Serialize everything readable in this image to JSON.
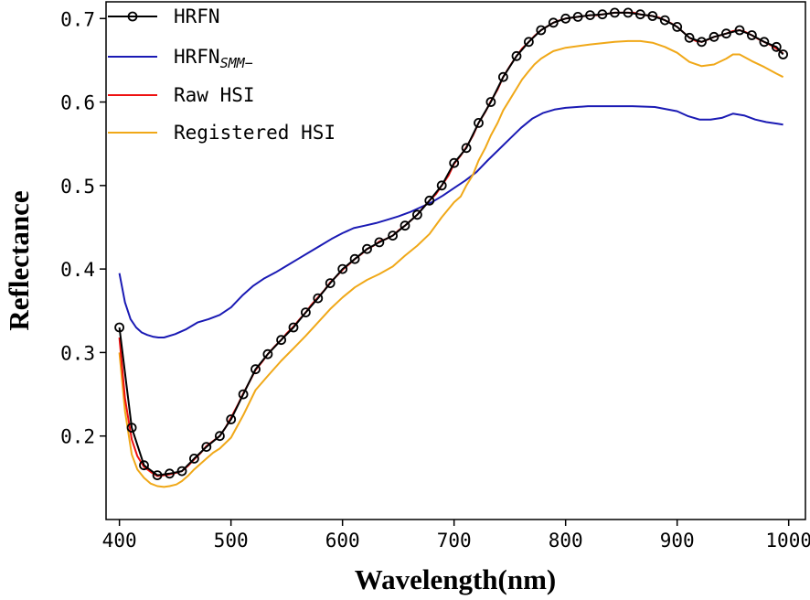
{
  "chart_data": {
    "type": "line",
    "title": "",
    "xlabel": "Wavelength(nm)",
    "ylabel": "Reflectance",
    "xlim": [
      388,
      1015
    ],
    "ylim": [
      0.1,
      0.72
    ],
    "xticks": [
      400,
      500,
      600,
      700,
      800,
      900,
      1000
    ],
    "xtick_labels": [
      "400",
      "500",
      "600",
      "700",
      "800",
      "900",
      "1000"
    ],
    "yticks": [
      0.2,
      0.3,
      0.4,
      0.5,
      0.6,
      0.7
    ],
    "ytick_labels": [
      "0.2",
      "0.3",
      "0.4",
      "0.5",
      "0.6",
      "0.7"
    ],
    "grid": false,
    "legend_position": "top-left",
    "series": [
      {
        "name": "HRFN",
        "legend_label": "HRFN",
        "color": "#000000",
        "marker": "circle-open",
        "x": [
          400,
          411,
          422,
          434,
          445,
          456,
          467,
          478,
          490,
          500,
          511,
          522,
          533,
          545,
          556,
          567,
          578,
          589,
          600,
          611,
          622,
          633,
          645,
          656,
          667,
          678,
          689,
          700,
          711,
          722,
          733,
          744,
          756,
          767,
          778,
          789,
          800,
          811,
          822,
          833,
          844,
          856,
          867,
          878,
          889,
          900,
          911,
          922,
          933,
          944,
          956,
          967,
          978,
          989,
          995
        ],
        "values": [
          0.33,
          0.21,
          0.165,
          0.153,
          0.155,
          0.158,
          0.173,
          0.187,
          0.2,
          0.22,
          0.25,
          0.28,
          0.298,
          0.315,
          0.33,
          0.348,
          0.365,
          0.383,
          0.4,
          0.412,
          0.424,
          0.432,
          0.44,
          0.452,
          0.465,
          0.482,
          0.5,
          0.527,
          0.545,
          0.575,
          0.6,
          0.63,
          0.655,
          0.672,
          0.686,
          0.695,
          0.7,
          0.702,
          0.704,
          0.705,
          0.707,
          0.707,
          0.705,
          0.703,
          0.698,
          0.69,
          0.677,
          0.672,
          0.678,
          0.682,
          0.686,
          0.68,
          0.672,
          0.666,
          0.657
        ]
      },
      {
        "name": "HRFN_SMM-",
        "legend_label": "HRFN",
        "legend_sub": "SMM−",
        "color": "#1a1ab4",
        "marker": "none",
        "x": [
          400,
          405,
          410,
          415,
          420,
          425,
          430,
          435,
          440,
          450,
          460,
          470,
          480,
          490,
          500,
          510,
          520,
          530,
          540,
          550,
          560,
          570,
          580,
          590,
          600,
          610,
          620,
          630,
          640,
          650,
          660,
          670,
          680,
          690,
          700,
          710,
          720,
          730,
          740,
          750,
          760,
          770,
          780,
          790,
          800,
          820,
          840,
          860,
          880,
          900,
          910,
          920,
          930,
          940,
          950,
          960,
          970,
          980,
          990,
          995
        ],
        "values": [
          0.395,
          0.36,
          0.34,
          0.33,
          0.324,
          0.321,
          0.319,
          0.318,
          0.318,
          0.322,
          0.328,
          0.336,
          0.34,
          0.345,
          0.354,
          0.368,
          0.38,
          0.389,
          0.396,
          0.404,
          0.412,
          0.42,
          0.428,
          0.436,
          0.443,
          0.449,
          0.452,
          0.455,
          0.459,
          0.463,
          0.468,
          0.474,
          0.48,
          0.488,
          0.497,
          0.506,
          0.516,
          0.53,
          0.543,
          0.556,
          0.569,
          0.58,
          0.587,
          0.591,
          0.593,
          0.595,
          0.595,
          0.595,
          0.594,
          0.589,
          0.583,
          0.579,
          0.579,
          0.581,
          0.586,
          0.584,
          0.579,
          0.576,
          0.574,
          0.573
        ]
      },
      {
        "name": "Raw HSI",
        "legend_label": "Raw HSI",
        "color": "#ee1111",
        "marker": "none",
        "x": [
          400,
          405,
          411,
          416,
          422,
          428,
          434,
          440,
          445,
          451,
          456,
          462,
          467,
          473,
          478,
          484,
          490,
          495,
          500,
          506,
          511,
          517,
          522,
          528,
          533,
          539,
          545,
          550,
          556,
          561,
          567,
          572,
          578,
          584,
          589,
          595,
          600,
          606,
          611,
          617,
          622,
          628,
          633,
          639,
          645,
          650,
          656,
          661,
          667,
          672,
          678,
          684,
          689,
          695,
          700,
          706,
          711,
          717,
          722,
          728,
          733,
          739,
          744,
          750,
          756,
          761,
          767,
          772,
          778,
          784,
          789,
          795,
          800,
          806,
          811,
          817,
          822,
          828,
          833,
          839,
          844,
          850,
          856,
          861,
          867,
          872,
          878,
          884,
          889,
          895,
          900,
          906,
          911,
          917,
          922,
          928,
          933,
          939,
          944,
          950,
          956,
          961,
          967,
          972,
          978,
          984,
          989,
          995
        ],
        "values": [
          0.318,
          0.245,
          0.196,
          0.176,
          0.163,
          0.157,
          0.152,
          0.153,
          0.154,
          0.156,
          0.158,
          0.165,
          0.172,
          0.18,
          0.188,
          0.194,
          0.2,
          0.21,
          0.222,
          0.237,
          0.251,
          0.266,
          0.279,
          0.289,
          0.298,
          0.307,
          0.315,
          0.323,
          0.331,
          0.339,
          0.348,
          0.357,
          0.366,
          0.375,
          0.384,
          0.392,
          0.399,
          0.406,
          0.412,
          0.418,
          0.424,
          0.428,
          0.433,
          0.436,
          0.44,
          0.446,
          0.452,
          0.458,
          0.465,
          0.473,
          0.482,
          0.49,
          0.5,
          0.512,
          0.526,
          0.536,
          0.546,
          0.56,
          0.575,
          0.588,
          0.601,
          0.615,
          0.63,
          0.643,
          0.655,
          0.664,
          0.672,
          0.679,
          0.686,
          0.691,
          0.695,
          0.698,
          0.7,
          0.701,
          0.702,
          0.703,
          0.704,
          0.704,
          0.705,
          0.706,
          0.707,
          0.707,
          0.707,
          0.707,
          0.705,
          0.704,
          0.703,
          0.701,
          0.698,
          0.694,
          0.69,
          0.683,
          0.677,
          0.673,
          0.672,
          0.675,
          0.678,
          0.68,
          0.682,
          0.685,
          0.686,
          0.684,
          0.68,
          0.676,
          0.672,
          0.668,
          0.664,
          0.658
        ]
      },
      {
        "name": "Registered HSI",
        "legend_label": "Registered HSI",
        "color": "#f0a818",
        "marker": "none",
        "x": [
          400,
          405,
          411,
          416,
          422,
          428,
          434,
          440,
          445,
          451,
          456,
          462,
          467,
          473,
          478,
          484,
          490,
          500,
          511,
          522,
          533,
          545,
          556,
          567,
          578,
          589,
          600,
          611,
          622,
          633,
          645,
          656,
          667,
          678,
          689,
          700,
          706,
          711,
          717,
          722,
          728,
          733,
          739,
          744,
          750,
          756,
          761,
          767,
          772,
          778,
          784,
          789,
          800,
          822,
          844,
          856,
          867,
          878,
          889,
          900,
          911,
          922,
          933,
          944,
          950,
          956,
          967,
          978,
          989,
          995
        ],
        "values": [
          0.3,
          0.23,
          0.178,
          0.16,
          0.15,
          0.143,
          0.14,
          0.139,
          0.14,
          0.142,
          0.146,
          0.153,
          0.16,
          0.167,
          0.173,
          0.18,
          0.185,
          0.198,
          0.225,
          0.255,
          0.272,
          0.29,
          0.305,
          0.32,
          0.336,
          0.352,
          0.366,
          0.378,
          0.387,
          0.394,
          0.403,
          0.416,
          0.428,
          0.442,
          0.462,
          0.48,
          0.487,
          0.5,
          0.513,
          0.53,
          0.545,
          0.56,
          0.575,
          0.59,
          0.603,
          0.616,
          0.627,
          0.637,
          0.645,
          0.652,
          0.657,
          0.661,
          0.665,
          0.669,
          0.672,
          0.673,
          0.673,
          0.671,
          0.666,
          0.659,
          0.648,
          0.643,
          0.645,
          0.652,
          0.657,
          0.657,
          0.649,
          0.642,
          0.634,
          0.63
        ]
      }
    ]
  }
}
